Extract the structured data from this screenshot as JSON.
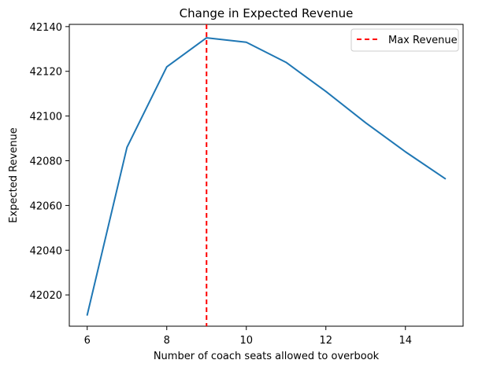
{
  "chart_data": {
    "type": "line",
    "title": "Change in Expected Revenue",
    "xlabel": "Number of coach seats allowed to overbook",
    "ylabel": "Expected Revenue",
    "xlim": [
      5.55,
      15.45
    ],
    "ylim": [
      42006,
      42141
    ],
    "xticks": [
      6,
      8,
      10,
      12,
      14
    ],
    "yticks": [
      42020,
      42040,
      42060,
      42080,
      42100,
      42120,
      42140
    ],
    "grid": false,
    "legend_position": "top-right",
    "series": [
      {
        "color": "#1f77b4",
        "x": [
          6,
          7,
          8,
          9,
          10,
          11,
          12,
          13,
          14,
          15
        ],
        "y": [
          42011,
          42086,
          42122,
          42135,
          42133,
          42124,
          42111,
          42097,
          42084,
          42072
        ]
      }
    ],
    "vline": {
      "label": "Max Revenue",
      "x": 9,
      "color": "#ff0000",
      "style": "dashed"
    }
  }
}
